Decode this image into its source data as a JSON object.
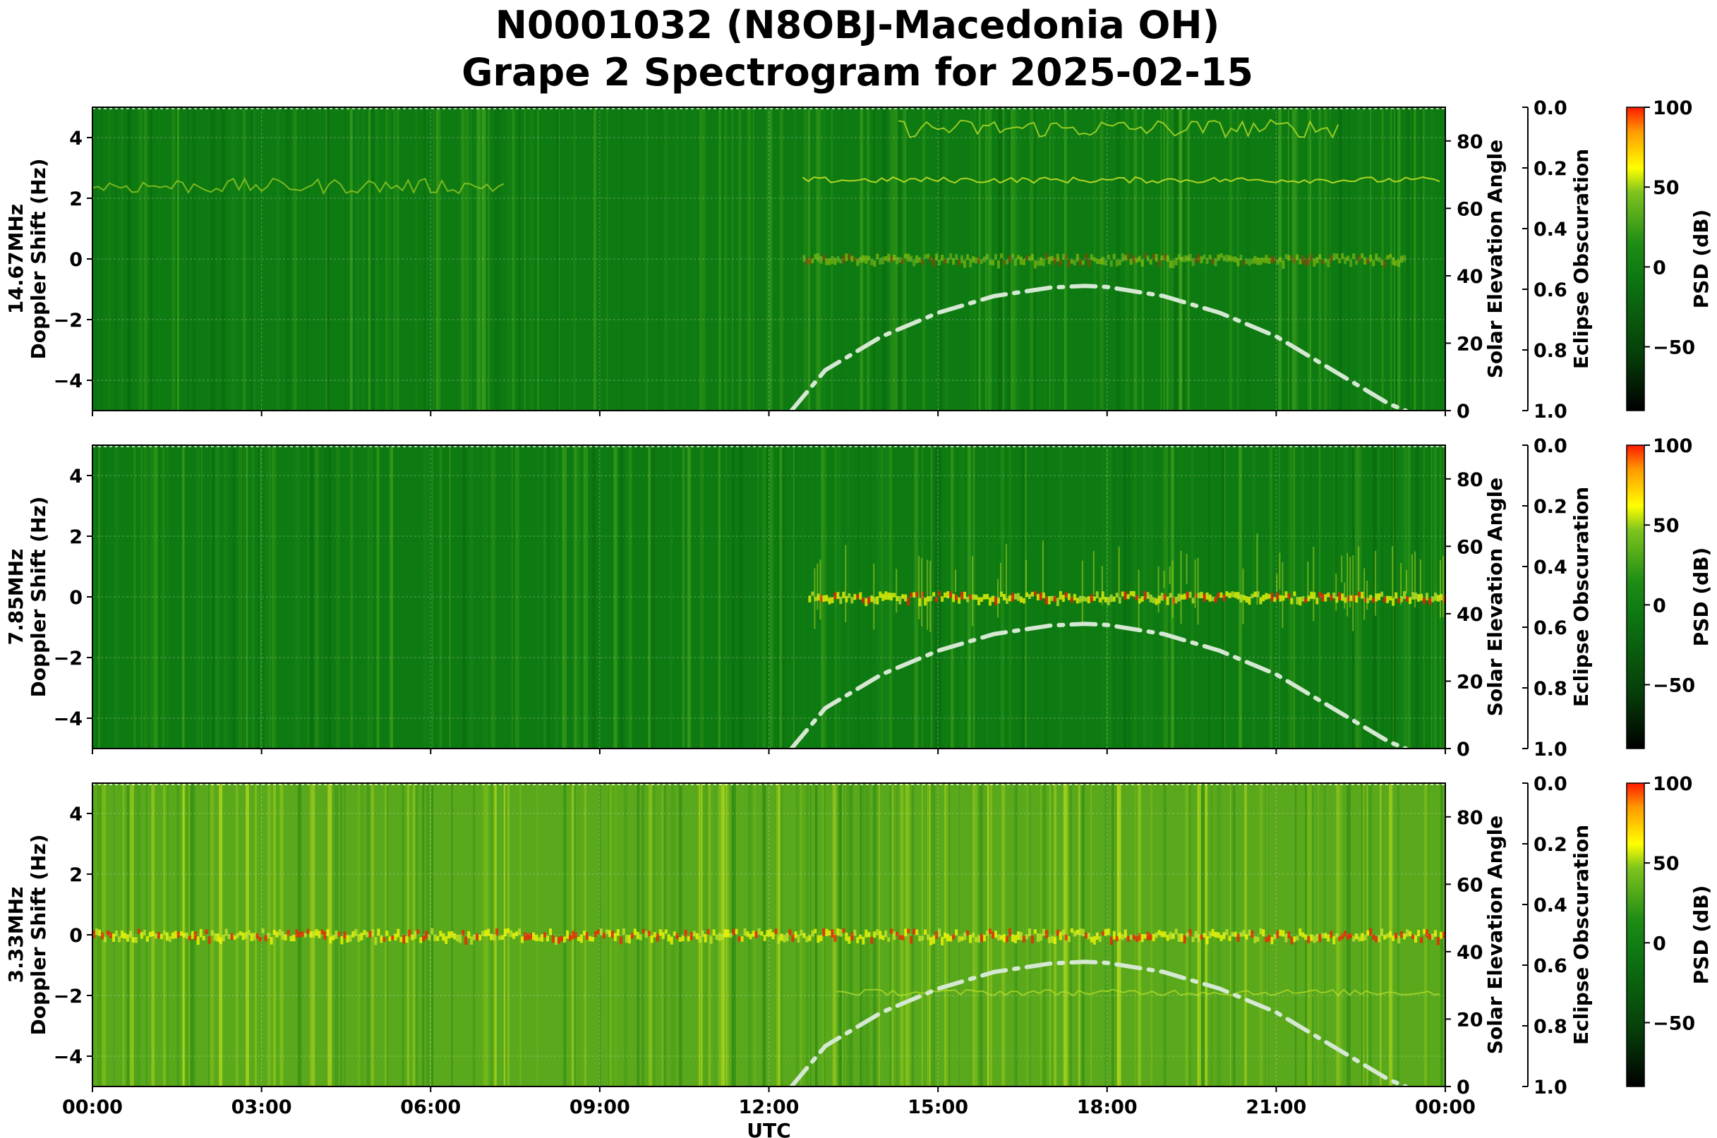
{
  "title": {
    "line1": "N0001032 (N8OBJ-Macedonia OH)",
    "line2": "Grape 2 Spectrogram for 2025-02-15"
  },
  "colors": {
    "background_green": "#0e7a12",
    "mid_green": "#3a9c1e",
    "yellow": "#ffff00",
    "red": "#ff1a00",
    "elevation_curve": "#d4e8d2",
    "black": "#000000"
  },
  "chart_data": [
    {
      "type": "heatmap",
      "panel": "14.67MHz",
      "ylabel_line1": "14.67MHz",
      "ylabel_line2": "Doppler Shift (Hz)",
      "xlabel": "",
      "x_ticks": [
        "00:00",
        "03:00",
        "06:00",
        "09:00",
        "12:00",
        "15:00",
        "18:00",
        "21:00",
        "00:00"
      ],
      "x_range_hours": [
        0,
        24
      ],
      "y_range": [
        -5,
        5
      ],
      "y_ticks": [
        "4",
        "2",
        "0",
        "−2",
        "−4"
      ],
      "y_tick_values": [
        4,
        2,
        0,
        -2,
        -4
      ],
      "right_axis1_label": "Solar Elevation Angle",
      "right_axis1_ticks": [
        "80",
        "60",
        "40",
        "20",
        "0"
      ],
      "right_axis1_values": [
        80,
        60,
        40,
        20,
        0
      ],
      "right_axis1_range": [
        0,
        90
      ],
      "right_axis2_label": "Eclipse Obscuration",
      "right_axis2_ticks": [
        "0.0",
        "0.2",
        "0.4",
        "0.6",
        "0.8",
        "1.0"
      ],
      "right_axis2_values": [
        0.0,
        0.2,
        0.4,
        0.6,
        0.8,
        1.0
      ],
      "colorbar_label": "PSD (dB)",
      "colorbar_ticks": [
        "100",
        "50",
        "0",
        "−50"
      ],
      "colorbar_values": [
        100,
        50,
        0,
        -50
      ],
      "colorbar_range": [
        -90,
        100
      ],
      "grid": true,
      "series": [
        {
          "x": [
            12.4,
            13,
            14,
            15,
            16,
            17,
            17.6,
            18,
            19,
            20,
            21,
            22,
            23,
            23.3
          ],
          "y": [
            0,
            12,
            22,
            29,
            34,
            36.5,
            37,
            36.7,
            34,
            29,
            22,
            12,
            2,
            0
          ]
        }
      ]
    },
    {
      "type": "heatmap",
      "panel": "7.85MHz",
      "ylabel_line1": "7.85MHz",
      "ylabel_line2": "Doppler Shift (Hz)",
      "xlabel": "",
      "x_ticks": [
        "00:00",
        "03:00",
        "06:00",
        "09:00",
        "12:00",
        "15:00",
        "18:00",
        "21:00",
        "00:00"
      ],
      "x_range_hours": [
        0,
        24
      ],
      "y_range": [
        -5,
        5
      ],
      "y_ticks": [
        "4",
        "2",
        "0",
        "−2",
        "−4"
      ],
      "y_tick_values": [
        4,
        2,
        0,
        -2,
        -4
      ],
      "right_axis1_label": "Solar Elevation Angle",
      "right_axis1_ticks": [
        "80",
        "60",
        "40",
        "20",
        "0"
      ],
      "right_axis1_values": [
        80,
        60,
        40,
        20,
        0
      ],
      "right_axis1_range": [
        0,
        90
      ],
      "right_axis2_label": "Eclipse Obscuration",
      "right_axis2_ticks": [
        "0.0",
        "0.2",
        "0.4",
        "0.6",
        "0.8",
        "1.0"
      ],
      "right_axis2_values": [
        0.0,
        0.2,
        0.4,
        0.6,
        0.8,
        1.0
      ],
      "colorbar_label": "PSD (dB)",
      "colorbar_ticks": [
        "100",
        "50",
        "0",
        "−50"
      ],
      "colorbar_values": [
        100,
        50,
        0,
        -50
      ],
      "colorbar_range": [
        -90,
        100
      ],
      "grid": true,
      "series": [
        {
          "x": [
            12.4,
            13,
            14,
            15,
            16,
            17,
            17.6,
            18,
            19,
            20,
            21,
            22,
            23,
            23.3
          ],
          "y": [
            0,
            12,
            22,
            29,
            34,
            36.5,
            37,
            36.7,
            34,
            29,
            22,
            12,
            2,
            0
          ]
        }
      ]
    },
    {
      "type": "heatmap",
      "panel": "3.33MHz",
      "ylabel_line1": "3.33MHz",
      "ylabel_line2": "Doppler Shift (Hz)",
      "xlabel": "UTC",
      "x_ticks": [
        "00:00",
        "03:00",
        "06:00",
        "09:00",
        "12:00",
        "15:00",
        "18:00",
        "21:00",
        "00:00"
      ],
      "x_range_hours": [
        0,
        24
      ],
      "y_range": [
        -5,
        5
      ],
      "y_ticks": [
        "4",
        "2",
        "0",
        "−2",
        "−4"
      ],
      "y_tick_values": [
        4,
        2,
        0,
        -2,
        -4
      ],
      "right_axis1_label": "Solar Elevation Angle",
      "right_axis1_ticks": [
        "80",
        "60",
        "40",
        "20",
        "0"
      ],
      "right_axis1_values": [
        80,
        60,
        40,
        20,
        0
      ],
      "right_axis1_range": [
        0,
        90
      ],
      "right_axis2_label": "Eclipse Obscuration",
      "right_axis2_ticks": [
        "0.0",
        "0.2",
        "0.4",
        "0.6",
        "0.8",
        "1.0"
      ],
      "right_axis2_values": [
        0.0,
        0.2,
        0.4,
        0.6,
        0.8,
        1.0
      ],
      "colorbar_label": "PSD (dB)",
      "colorbar_ticks": [
        "100",
        "50",
        "0",
        "−50"
      ],
      "colorbar_values": [
        100,
        50,
        0,
        -50
      ],
      "colorbar_range": [
        -90,
        100
      ],
      "grid": true,
      "series": [
        {
          "x": [
            12.4,
            13,
            14,
            15,
            16,
            17,
            17.6,
            18,
            19,
            20,
            21,
            22,
            23,
            23.3
          ],
          "y": [
            0,
            12,
            22,
            29,
            34,
            36.5,
            37,
            36.7,
            34,
            29,
            22,
            12,
            2,
            0
          ]
        }
      ]
    }
  ]
}
